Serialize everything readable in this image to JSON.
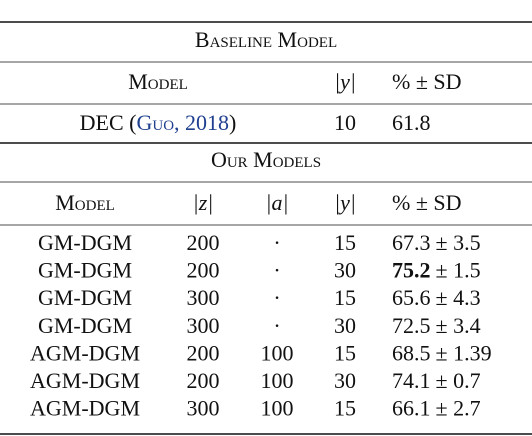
{
  "baseline": {
    "title": "Baseline Model",
    "header": [
      "Model",
      "|y|",
      "% ± SD"
    ],
    "row": {
      "model": [
        "DEC (",
        "Guo, 2018",
        ")"
      ],
      "y": "10",
      "result": "61.8"
    }
  },
  "ours": {
    "title": "Our Models",
    "header": [
      "Model",
      "|z|",
      "|a|",
      "|y|",
      "% ± SD"
    ],
    "rows": [
      {
        "model": "GM-DGM",
        "z": "200",
        "a": "·",
        "y": "15",
        "mean": "67.3",
        "sd": "± 3.5",
        "bold": false
      },
      {
        "model": "GM-DGM",
        "z": "200",
        "a": "·",
        "y": "30",
        "mean": "75.2",
        "sd": "± 1.5",
        "bold": true
      },
      {
        "model": "GM-DGM",
        "z": "300",
        "a": "·",
        "y": "15",
        "mean": "65.6",
        "sd": "± 4.3",
        "bold": false
      },
      {
        "model": "GM-DGM",
        "z": "300",
        "a": "·",
        "y": "30",
        "mean": "72.5",
        "sd": "± 3.4",
        "bold": false
      },
      {
        "model": "AGM-DGM",
        "z": "200",
        "a": "100",
        "y": "15",
        "mean": "68.5",
        "sd": "± 1.39",
        "bold": false
      },
      {
        "model": "AGM-DGM",
        "z": "200",
        "a": "100",
        "y": "30",
        "mean": "74.1",
        "sd": "± 0.7",
        "bold": false
      },
      {
        "model": "AGM-DGM",
        "z": "300",
        "a": "100",
        "y": "15",
        "mean": "66.1",
        "sd": "± 2.7",
        "bold": false
      }
    ]
  }
}
